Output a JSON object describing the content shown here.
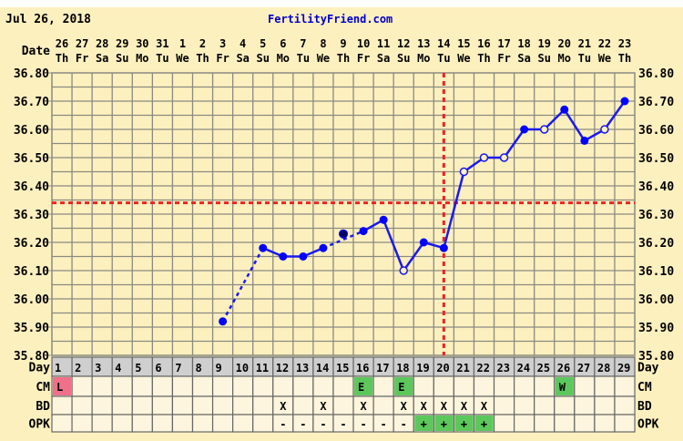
{
  "header": {
    "date": "Jul 26, 2018",
    "site": "FertilityFriend.com"
  },
  "labels": {
    "date": "Date",
    "day": "Day",
    "cm": "CM",
    "bd": "BD",
    "opk": "OPK"
  },
  "colors": {
    "background": "#fdf0bf",
    "grid": "#8a8a80",
    "line": "#1a1aee",
    "marker": "#0000ff",
    "discarded_marker": "#000066",
    "coverline": "#ee2222",
    "day_row": "#cfcfcf",
    "cell": "#fdf5dd",
    "cm_L": "#f0708c",
    "green": "#5cc85c",
    "site_link": "#0000cc"
  },
  "chart_data": {
    "type": "line",
    "title": "",
    "ylim": [
      35.8,
      36.8
    ],
    "y_ticks": [
      "36.80",
      "36.70",
      "36.60",
      "36.50",
      "36.40",
      "36.30",
      "36.20",
      "36.10",
      "36.00",
      "35.90",
      "35.80"
    ],
    "grid": true,
    "dates": [
      "26",
      "27",
      "28",
      "29",
      "30",
      "31",
      "1",
      "2",
      "3",
      "4",
      "5",
      "6",
      "7",
      "8",
      "9",
      "10",
      "11",
      "12",
      "13",
      "14",
      "15",
      "16",
      "17",
      "18",
      "19",
      "20",
      "21",
      "22",
      "23"
    ],
    "weekdays": [
      "Th",
      "Fr",
      "Sa",
      "Su",
      "Mo",
      "Tu",
      "We",
      "Th",
      "Fr",
      "Sa",
      "Su",
      "Mo",
      "Tu",
      "We",
      "Th",
      "Fr",
      "Sa",
      "Su",
      "Mo",
      "Tu",
      "We",
      "Th",
      "Fr",
      "Sa",
      "Su",
      "Mo",
      "Tu",
      "We",
      "Th"
    ],
    "days": [
      "1",
      "2",
      "3",
      "4",
      "5",
      "6",
      "7",
      "8",
      "9",
      "10",
      "11",
      "12",
      "13",
      "14",
      "15",
      "16",
      "17",
      "18",
      "19",
      "20",
      "21",
      "22",
      "23",
      "24",
      "25",
      "26",
      "27",
      "28",
      "29"
    ],
    "temperatures": [
      {
        "day": 9,
        "temp": 35.92,
        "marker": "filled"
      },
      {
        "day": 11,
        "temp": 36.18,
        "marker": "filled"
      },
      {
        "day": 12,
        "temp": 36.15,
        "marker": "filled"
      },
      {
        "day": 13,
        "temp": 36.15,
        "marker": "filled"
      },
      {
        "day": 14,
        "temp": 36.18,
        "marker": "filled"
      },
      {
        "day": 15,
        "temp": 36.23,
        "marker": "discarded"
      },
      {
        "day": 16,
        "temp": 36.24,
        "marker": "filled"
      },
      {
        "day": 17,
        "temp": 36.28,
        "marker": "filled"
      },
      {
        "day": 18,
        "temp": 36.1,
        "marker": "open"
      },
      {
        "day": 19,
        "temp": 36.2,
        "marker": "filled"
      },
      {
        "day": 20,
        "temp": 36.18,
        "marker": "filled"
      },
      {
        "day": 21,
        "temp": 36.45,
        "marker": "open"
      },
      {
        "day": 22,
        "temp": 36.5,
        "marker": "open"
      },
      {
        "day": 23,
        "temp": 36.5,
        "marker": "open"
      },
      {
        "day": 24,
        "temp": 36.6,
        "marker": "filled"
      },
      {
        "day": 25,
        "temp": 36.6,
        "marker": "open"
      },
      {
        "day": 26,
        "temp": 36.67,
        "marker": "filled"
      },
      {
        "day": 27,
        "temp": 36.56,
        "marker": "filled"
      },
      {
        "day": 28,
        "temp": 36.6,
        "marker": "open"
      },
      {
        "day": 29,
        "temp": 36.7,
        "marker": "filled"
      }
    ],
    "dashed_segments": [
      [
        9,
        11
      ],
      [
        14,
        16
      ]
    ],
    "coverline": 36.34,
    "ovulation_day": 20,
    "cm": [
      {
        "day": 1,
        "value": "L",
        "color": "pink"
      },
      {
        "day": 16,
        "value": "E",
        "color": "green"
      },
      {
        "day": 18,
        "value": "E",
        "color": "green"
      },
      {
        "day": 26,
        "value": "W",
        "color": "green"
      }
    ],
    "bd": [
      {
        "day": 12,
        "value": "X"
      },
      {
        "day": 14,
        "value": "X"
      },
      {
        "day": 16,
        "value": "X"
      },
      {
        "day": 18,
        "value": "X"
      },
      {
        "day": 19,
        "value": "X"
      },
      {
        "day": 20,
        "value": "X"
      },
      {
        "day": 21,
        "value": "X"
      },
      {
        "day": 22,
        "value": "X"
      }
    ],
    "opk": [
      {
        "day": 12,
        "value": "-"
      },
      {
        "day": 13,
        "value": "-"
      },
      {
        "day": 14,
        "value": "-"
      },
      {
        "day": 15,
        "value": "-"
      },
      {
        "day": 16,
        "value": "-"
      },
      {
        "day": 17,
        "value": "-"
      },
      {
        "day": 18,
        "value": "-"
      },
      {
        "day": 19,
        "value": "+",
        "color": "green"
      },
      {
        "day": 20,
        "value": "+",
        "color": "green"
      },
      {
        "day": 21,
        "value": "+",
        "color": "green"
      },
      {
        "day": 22,
        "value": "+",
        "color": "green"
      }
    ]
  }
}
